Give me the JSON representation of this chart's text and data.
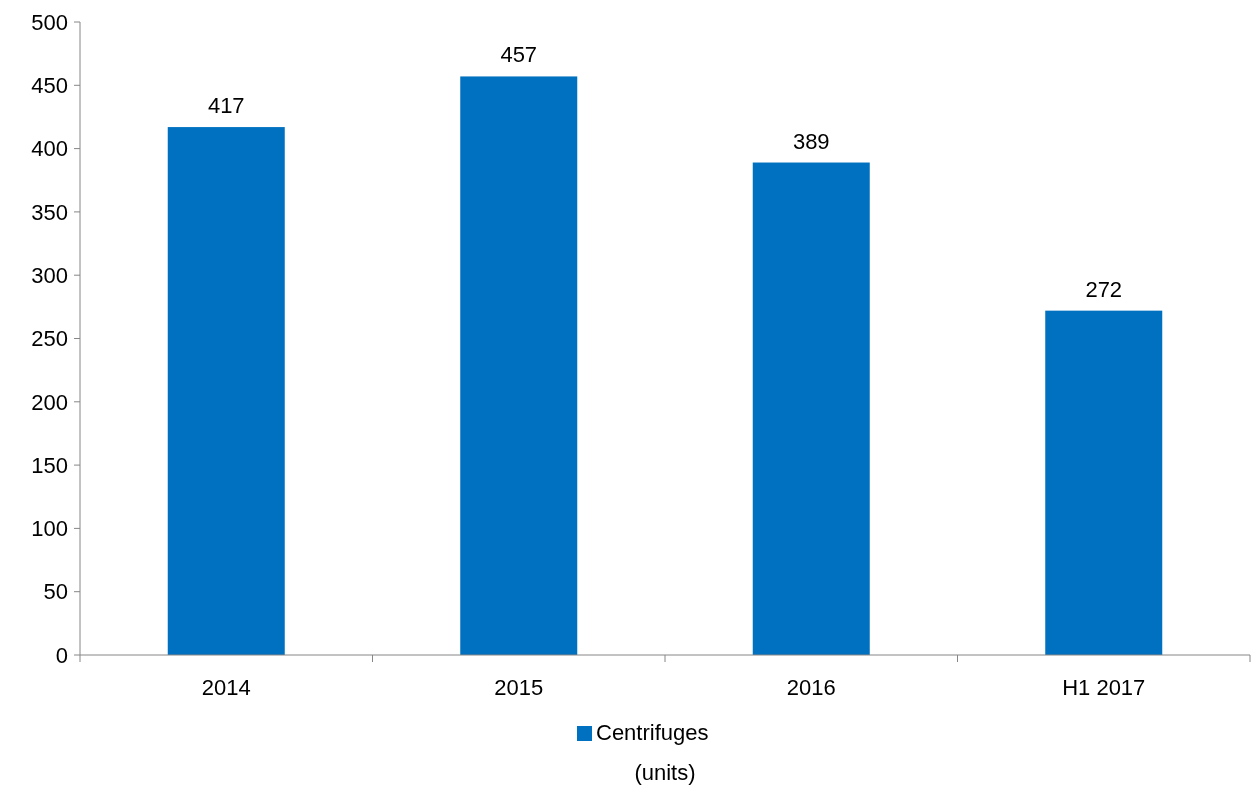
{
  "chart_data": {
    "type": "bar",
    "categories": [
      "2014",
      "2015",
      "2016",
      "H1 2017"
    ],
    "series": [
      {
        "name": "Centrifuges",
        "color": "#0070c0",
        "values": [
          417,
          457,
          389,
          272
        ]
      }
    ],
    "ylim": [
      0,
      500
    ],
    "yticks": [
      0,
      50,
      100,
      150,
      200,
      250,
      300,
      350,
      400,
      450,
      500
    ],
    "data_labels": true,
    "legend": "bottom",
    "grid": false,
    "annotations": [
      "(units)"
    ]
  }
}
